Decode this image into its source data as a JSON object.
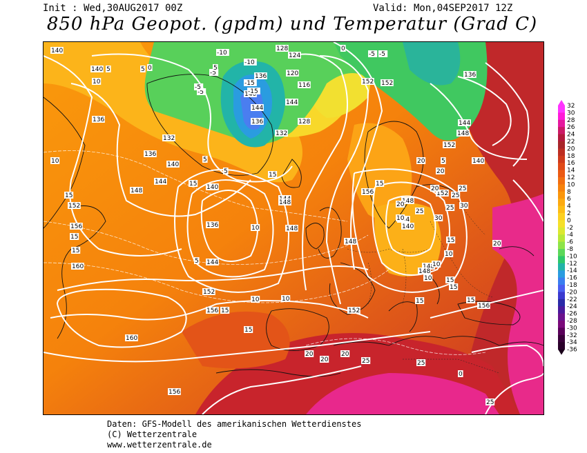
{
  "header": {
    "init": "Init : Wed,30AUG2017 00Z",
    "valid": "Valid: Mon,04SEP2017 12Z",
    "title": "850 hPa Geopot. (gpdm) und Temperatur (Grad C)"
  },
  "credits": {
    "line1": "Daten: GFS-Modell des amerikanischen Wetterdienstes",
    "line2": "(C) Wetterzentrale",
    "line3": "www.wetterzentrale.de"
  },
  "legend": {
    "ticks": [
      "32",
      "30",
      "28",
      "26",
      "24",
      "22",
      "20",
      "18",
      "16",
      "14",
      "12",
      "10",
      "8",
      "6",
      "4",
      "2",
      "0",
      "-2",
      "-4",
      "-6",
      "-8",
      "-10",
      "-12",
      "-14",
      "-16",
      "-18",
      "-20",
      "-22",
      "-24",
      "-26",
      "-28",
      "-30",
      "-32",
      "-34",
      "-36"
    ],
    "colors": [
      "#ff33ff",
      "#ff1ad9",
      "#e6199f",
      "#cc1a66",
      "#b31a3c",
      "#a8262a",
      "#bd2e22",
      "#cf3a1c",
      "#e04a18",
      "#eb5a14",
      "#f26e10",
      "#f7820c",
      "#fa960c",
      "#fcaa10",
      "#fdbd16",
      "#fdd020",
      "#f5e02a",
      "#dce830",
      "#b8e838",
      "#8ee448",
      "#5cd85a",
      "#2ec86a",
      "#22b4a8",
      "#2a9ce0",
      "#3a7ef0",
      "#4a5ef0",
      "#3a3ad0",
      "#2a2aa8",
      "#4a1a9c",
      "#6a128c",
      "#7a0a7a",
      "#5a005a",
      "#3a003a",
      "#2a002a"
    ]
  },
  "map": {
    "geopotential_labels": [
      "140",
      "140",
      "136",
      "132",
      "136",
      "140",
      "144",
      "148",
      "152",
      "156",
      "160",
      "160",
      "156",
      "152",
      "156",
      "148",
      "144",
      "140",
      "136",
      "144",
      "148",
      "152",
      "128",
      "124",
      "120",
      "116",
      "136",
      "140",
      "144",
      "136",
      "132",
      "128",
      "152",
      "156",
      "148",
      "144",
      "140",
      "148",
      "152",
      "148",
      "144",
      "148",
      "152",
      "136",
      "140",
      "144",
      "148",
      "152",
      "156"
    ],
    "temperature_labels": [
      "5",
      "5",
      "10",
      "10",
      "15",
      "15",
      "15",
      "15",
      "15",
      "15",
      "20",
      "20",
      "20",
      "20",
      "25",
      "25",
      "25",
      "25",
      "30",
      "30",
      "-5",
      "-10",
      "-10",
      "-15",
      "-15",
      "-5",
      "-5",
      "0",
      "0",
      "5",
      "5",
      "5",
      "10",
      "10",
      "10",
      "15",
      "15",
      "20",
      "20",
      "20",
      "25",
      "25",
      "0",
      "5",
      "10",
      "10",
      "15",
      "15",
      "20",
      "-5",
      "-5",
      "5",
      "10",
      "15",
      "10",
      "15",
      "15",
      "25"
    ]
  }
}
